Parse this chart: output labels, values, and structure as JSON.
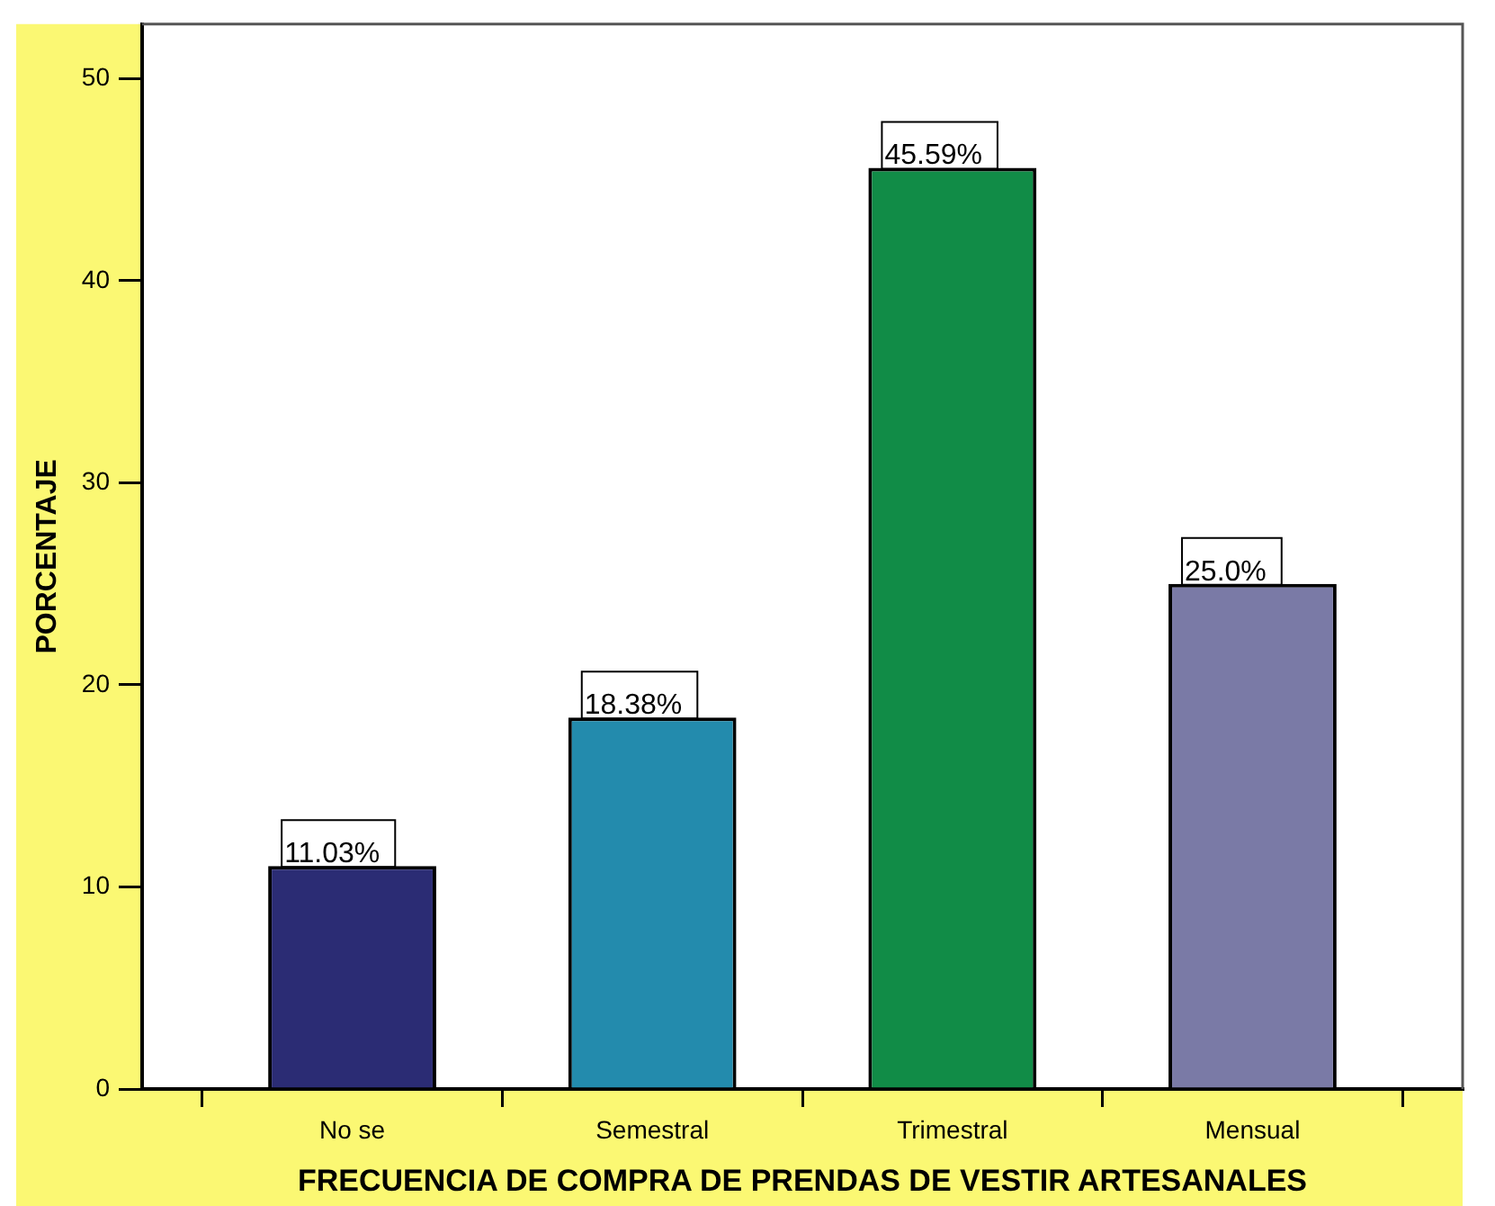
{
  "chart_data": {
    "type": "bar",
    "xlabel": "FRECUENCIA DE COMPRA DE PRENDAS DE VESTIR ARTESANALES",
    "ylabel": "PORCENTAJE",
    "categories": [
      "No se",
      "Semestral",
      "Trimestral",
      "Mensual"
    ],
    "values": [
      11.03,
      18.38,
      45.59,
      25.0
    ],
    "colors": [
      "#2b2c74",
      "#238bad",
      "#118c47",
      "#7a7aa6"
    ],
    "value_labels": [
      "11.03%",
      "18.38%",
      "45.59%",
      "25.0%"
    ],
    "ylim": [
      0,
      52.7
    ],
    "yticks": [
      0,
      10,
      20,
      30,
      40,
      50
    ],
    "grid": false,
    "legend": false
  }
}
